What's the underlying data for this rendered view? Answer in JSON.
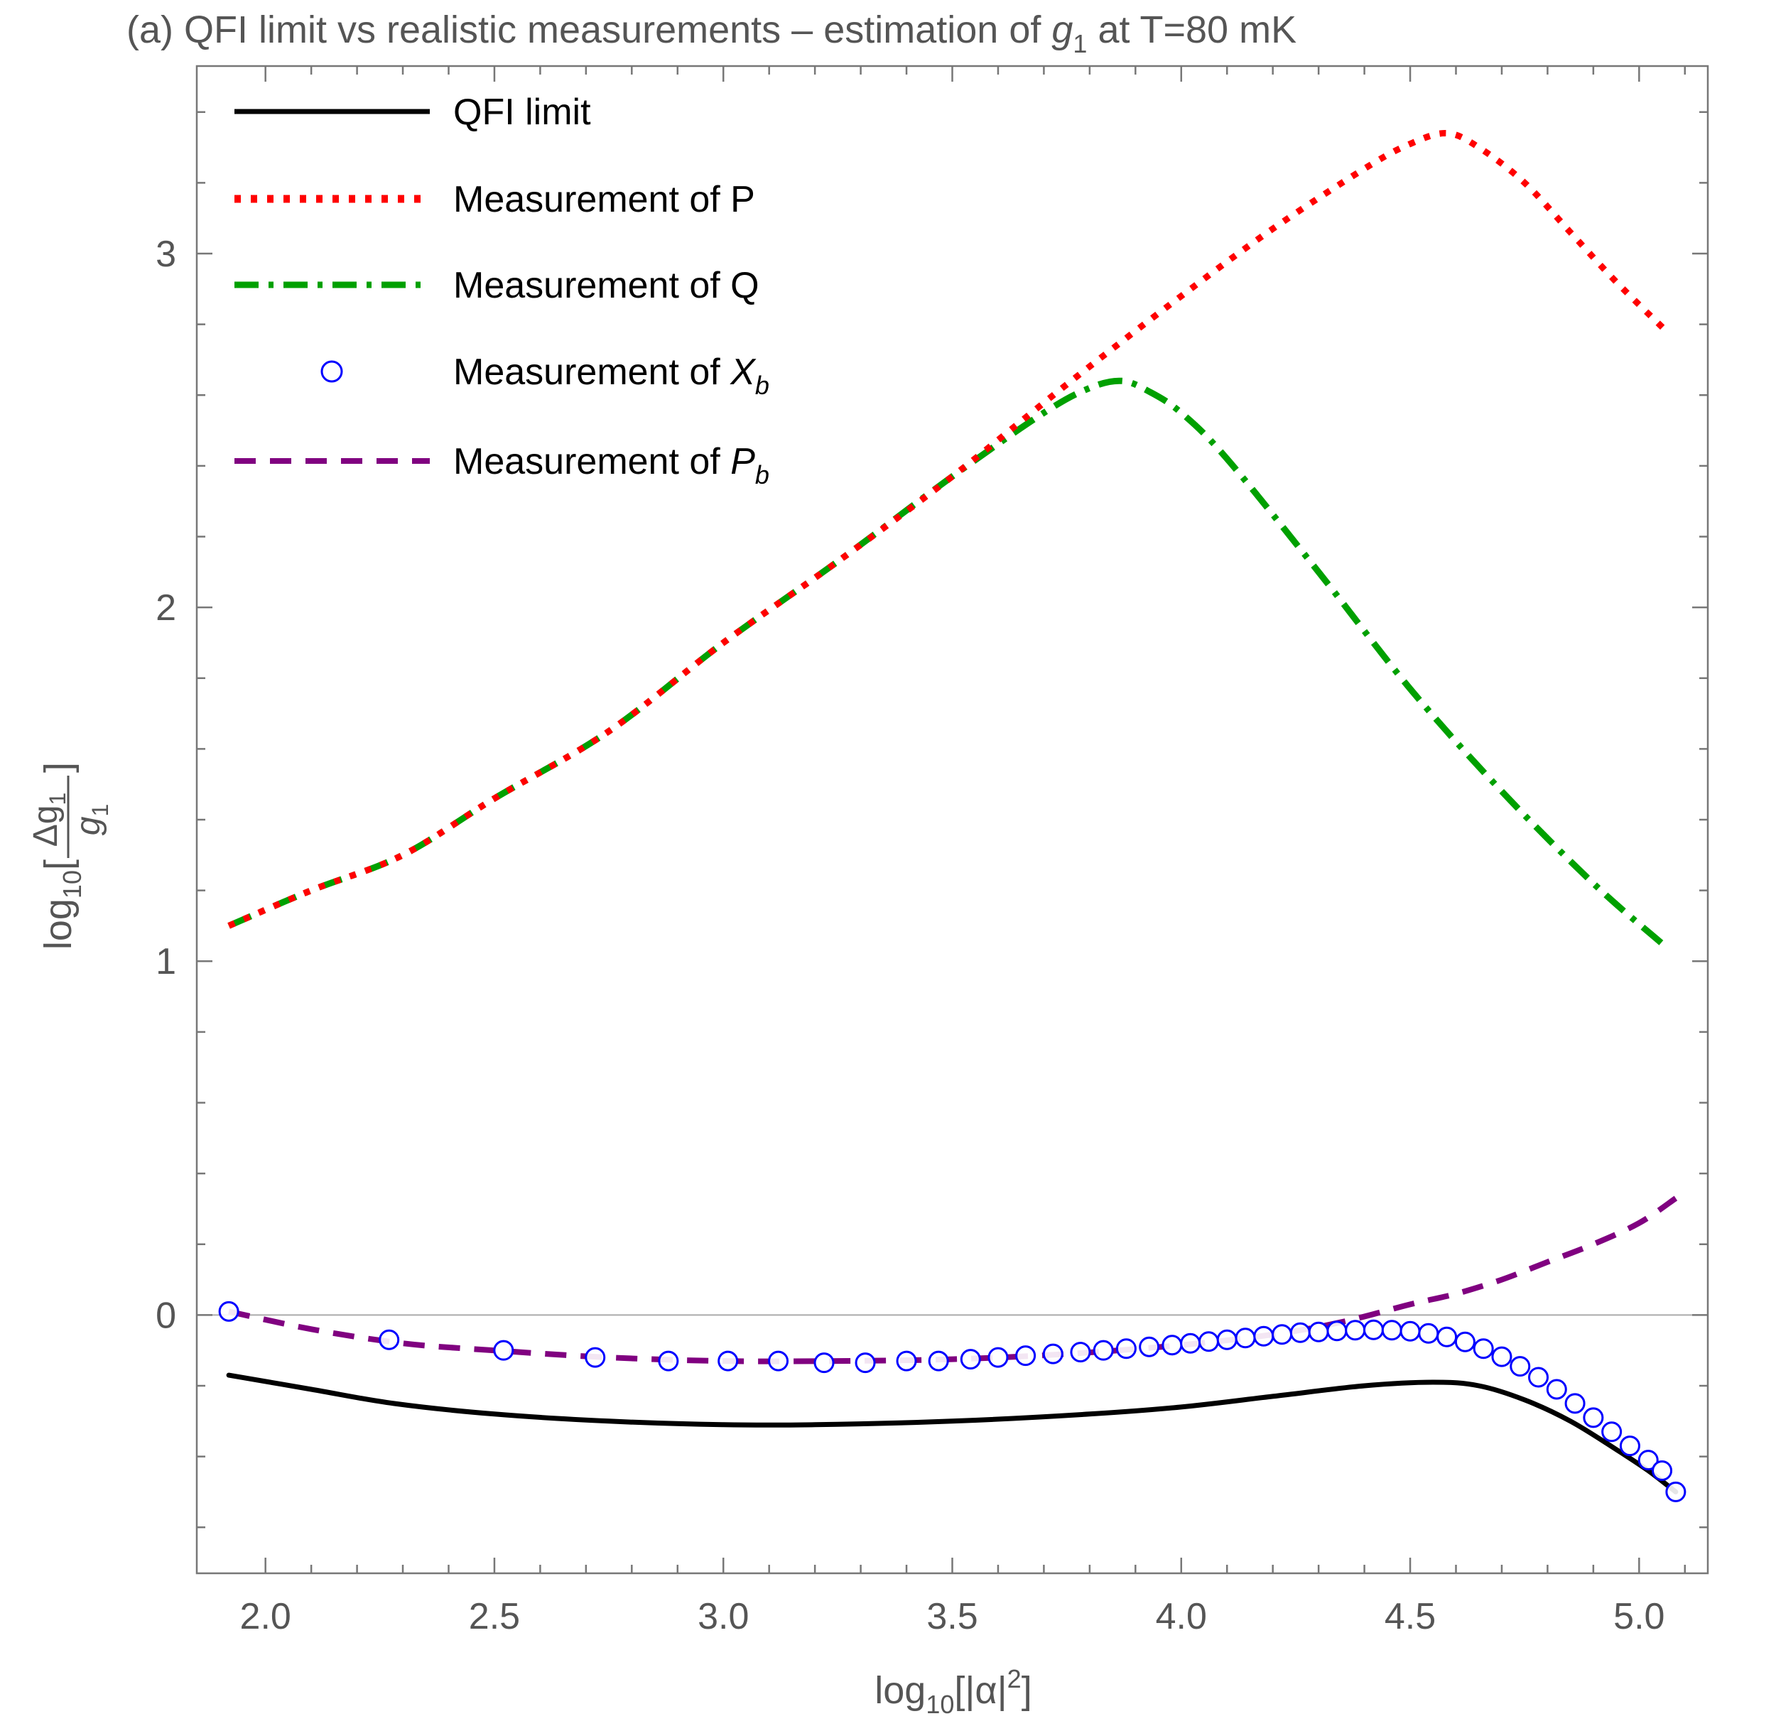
{
  "chart_data": {
    "type": "line",
    "title": {
      "prefix": "(a) QFI limit vs realistic measurements – estimation of ",
      "symbol": "g",
      "symbol_subscript": "1",
      "suffix": " at T=80 mK"
    },
    "xlabel": {
      "main": "log",
      "sub": "10",
      "rest": "[|α|",
      "sup": "2",
      "close": "]"
    },
    "ylabel": {
      "main": "log",
      "sub": "10",
      "open": "[",
      "numerator": "Δg",
      "numerator_sub": "1",
      "denominator": "g",
      "denominator_sub": "1",
      "close": "]"
    },
    "xlim": [
      1.85,
      5.15
    ],
    "ylim": [
      -0.73,
      3.53
    ],
    "xticks": [
      "2.0",
      "2.5",
      "3.0",
      "3.5",
      "4.0",
      "4.5",
      "5.0"
    ],
    "yticks": [
      "0",
      "1",
      "2",
      "3"
    ],
    "reference_line_y": 0,
    "legend": {
      "position": "top-left",
      "entries": [
        {
          "label": "QFI limit",
          "sub": ""
        },
        {
          "label": "Measurement of P",
          "sub": ""
        },
        {
          "label": "Measurement of Q",
          "sub": ""
        },
        {
          "label": "Measurement of ",
          "italic": "X",
          "sub": "b"
        },
        {
          "label": "Measurement of ",
          "italic": "P",
          "sub": "b"
        }
      ]
    },
    "series": [
      {
        "name": "QFI limit",
        "color": "#000000",
        "style": "solid",
        "points": [
          [
            1.92,
            -0.17
          ],
          [
            2.1,
            -0.21
          ],
          [
            2.28,
            -0.25
          ],
          [
            2.5,
            -0.28
          ],
          [
            2.75,
            -0.3
          ],
          [
            3.0,
            -0.31
          ],
          [
            3.2,
            -0.31
          ],
          [
            3.5,
            -0.3
          ],
          [
            3.8,
            -0.28
          ],
          [
            4.0,
            -0.26
          ],
          [
            4.2,
            -0.23
          ],
          [
            4.4,
            -0.2
          ],
          [
            4.55,
            -0.19
          ],
          [
            4.65,
            -0.2
          ],
          [
            4.75,
            -0.24
          ],
          [
            4.85,
            -0.3
          ],
          [
            4.95,
            -0.38
          ],
          [
            5.02,
            -0.44
          ],
          [
            5.08,
            -0.5
          ]
        ]
      },
      {
        "name": "Measurement of P",
        "color": "#ff0000",
        "style": "dotted",
        "points": [
          [
            1.92,
            1.1
          ],
          [
            2.1,
            1.2
          ],
          [
            2.3,
            1.3
          ],
          [
            2.5,
            1.46
          ],
          [
            2.75,
            1.65
          ],
          [
            3.0,
            1.9
          ],
          [
            3.25,
            2.13
          ],
          [
            3.5,
            2.37
          ],
          [
            3.75,
            2.63
          ],
          [
            4.0,
            2.88
          ],
          [
            4.2,
            3.07
          ],
          [
            4.4,
            3.24
          ],
          [
            4.5,
            3.31
          ],
          [
            4.58,
            3.34
          ],
          [
            4.65,
            3.3
          ],
          [
            4.75,
            3.2
          ],
          [
            4.85,
            3.06
          ],
          [
            4.95,
            2.92
          ],
          [
            5.06,
            2.78
          ]
        ]
      },
      {
        "name": "Measurement of Q",
        "color": "#00a000",
        "style": "dashdot",
        "points": [
          [
            1.92,
            1.1
          ],
          [
            2.1,
            1.2
          ],
          [
            2.3,
            1.3
          ],
          [
            2.5,
            1.46
          ],
          [
            2.75,
            1.65
          ],
          [
            3.0,
            1.9
          ],
          [
            3.25,
            2.13
          ],
          [
            3.5,
            2.37
          ],
          [
            3.7,
            2.55
          ],
          [
            3.8,
            2.62
          ],
          [
            3.87,
            2.64
          ],
          [
            3.93,
            2.61
          ],
          [
            4.0,
            2.55
          ],
          [
            4.1,
            2.42
          ],
          [
            4.3,
            2.1
          ],
          [
            4.5,
            1.77
          ],
          [
            4.7,
            1.48
          ],
          [
            4.9,
            1.22
          ],
          [
            5.05,
            1.05
          ]
        ]
      },
      {
        "name": "Measurement of Xb",
        "color": "#0000ff",
        "style": "markers",
        "points": [
          [
            1.92,
            0.01
          ],
          [
            2.27,
            -0.07
          ],
          [
            2.52,
            -0.1
          ],
          [
            2.72,
            -0.12
          ],
          [
            2.88,
            -0.13
          ],
          [
            3.01,
            -0.13
          ],
          [
            3.12,
            -0.13
          ],
          [
            3.22,
            -0.135
          ],
          [
            3.31,
            -0.135
          ],
          [
            3.4,
            -0.13
          ],
          [
            3.47,
            -0.13
          ],
          [
            3.54,
            -0.125
          ],
          [
            3.6,
            -0.12
          ],
          [
            3.66,
            -0.115
          ],
          [
            3.72,
            -0.11
          ],
          [
            3.78,
            -0.105
          ],
          [
            3.83,
            -0.1
          ],
          [
            3.88,
            -0.095
          ],
          [
            3.93,
            -0.09
          ],
          [
            3.98,
            -0.085
          ],
          [
            4.02,
            -0.08
          ],
          [
            4.06,
            -0.075
          ],
          [
            4.1,
            -0.07
          ],
          [
            4.14,
            -0.065
          ],
          [
            4.18,
            -0.06
          ],
          [
            4.22,
            -0.055
          ],
          [
            4.26,
            -0.05
          ],
          [
            4.3,
            -0.048
          ],
          [
            4.34,
            -0.045
          ],
          [
            4.38,
            -0.043
          ],
          [
            4.42,
            -0.042
          ],
          [
            4.46,
            -0.043
          ],
          [
            4.5,
            -0.046
          ],
          [
            4.54,
            -0.052
          ],
          [
            4.58,
            -0.062
          ],
          [
            4.62,
            -0.076
          ],
          [
            4.66,
            -0.095
          ],
          [
            4.7,
            -0.118
          ],
          [
            4.74,
            -0.145
          ],
          [
            4.78,
            -0.176
          ],
          [
            4.82,
            -0.21
          ],
          [
            4.86,
            -0.25
          ],
          [
            4.9,
            -0.29
          ],
          [
            4.94,
            -0.33
          ],
          [
            4.98,
            -0.37
          ],
          [
            5.02,
            -0.41
          ],
          [
            5.05,
            -0.44
          ],
          [
            5.08,
            -0.5
          ]
        ]
      },
      {
        "name": "Measurement of Pb",
        "color": "#800080",
        "style": "dashed",
        "points": [
          [
            1.92,
            0.01
          ],
          [
            2.1,
            -0.04
          ],
          [
            2.3,
            -0.08
          ],
          [
            2.5,
            -0.1
          ],
          [
            2.75,
            -0.12
          ],
          [
            3.0,
            -0.13
          ],
          [
            3.25,
            -0.13
          ],
          [
            3.5,
            -0.125
          ],
          [
            3.75,
            -0.11
          ],
          [
            4.0,
            -0.085
          ],
          [
            4.2,
            -0.055
          ],
          [
            4.35,
            -0.02
          ],
          [
            4.5,
            0.03
          ],
          [
            4.6,
            0.06
          ],
          [
            4.7,
            0.1
          ],
          [
            4.8,
            0.15
          ],
          [
            4.9,
            0.2
          ],
          [
            5.0,
            0.26
          ],
          [
            5.08,
            0.33
          ]
        ]
      }
    ]
  }
}
